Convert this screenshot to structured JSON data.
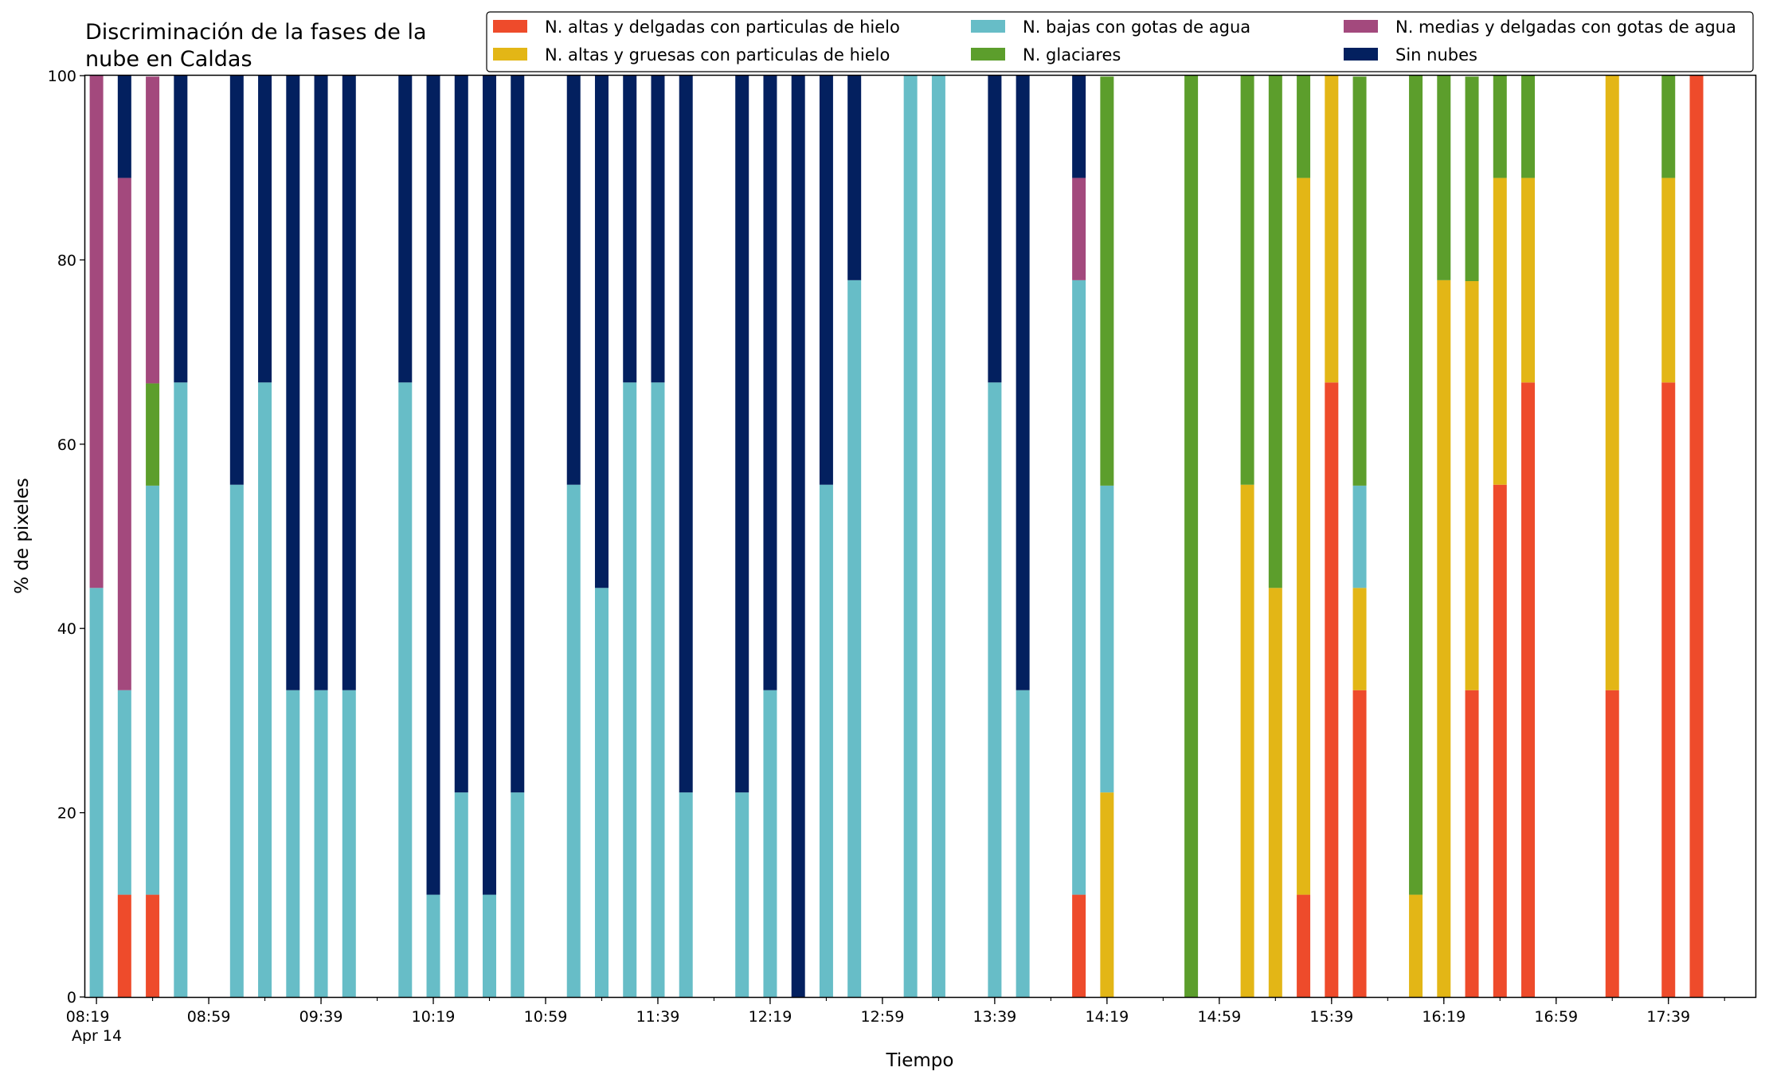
{
  "chart_data": {
    "type": "bar",
    "stacked": true,
    "title_lines": [
      "Discriminación de la fases de la",
      "nube en Caldas"
    ],
    "xlabel": "Tiempo",
    "ylabel": "% de pixeles",
    "ylim": [
      0,
      100
    ],
    "y_ticks": [
      0,
      20,
      40,
      60,
      80,
      100
    ],
    "x_ticks": [
      {
        "label": "08:19",
        "sublabel": "Apr 14",
        "time": "08:19"
      },
      {
        "label": "08:59",
        "time": "08:59"
      },
      {
        "label": "09:39",
        "time": "09:39"
      },
      {
        "label": "10:19",
        "time": "10:19"
      },
      {
        "label": "10:59",
        "time": "10:59"
      },
      {
        "label": "11:39",
        "time": "11:39"
      },
      {
        "label": "12:19",
        "time": "12:19"
      },
      {
        "label": "12:59",
        "time": "12:59"
      },
      {
        "label": "13:39",
        "time": "13:39"
      },
      {
        "label": "14:19",
        "time": "14:19"
      },
      {
        "label": "14:59",
        "time": "14:59"
      },
      {
        "label": "15:39",
        "time": "15:39"
      },
      {
        "label": "16:19",
        "time": "16:19"
      },
      {
        "label": "16:59",
        "time": "16:59"
      },
      {
        "label": "17:39",
        "time": "17:39"
      }
    ],
    "x_range": [
      "08:15",
      "18:10"
    ],
    "minor_tick_interval_minutes": 20,
    "grid": false,
    "legend_position": "top-right",
    "legend_columns": 3,
    "series": [
      {
        "name": "N. altas y delgadas con particulas de hielo",
        "color": "#ee4b2b"
      },
      {
        "name": "N. altas y gruesas con particulas de hielo",
        "color": "#e3b616"
      },
      {
        "name": "N. bajas con gotas de agua",
        "color": "#67bdc7"
      },
      {
        "name": "N. glaciares",
        "color": "#5c9e2c"
      },
      {
        "name": "N. medias y delgadas con gotas de agua",
        "color": "#a3497d"
      },
      {
        "name": "Sin nubes",
        "color": "#03205f"
      }
    ],
    "stack_order": [
      "N. altas y delgadas con particulas de hielo",
      "N. altas y gruesas con particulas de hielo",
      "N. bajas con gotas de agua",
      "N. glaciares",
      "N. medias y delgadas con gotas de agua",
      "Sin nubes"
    ],
    "bars": [
      {
        "time": "08:19",
        "values": [
          0,
          0,
          44.4,
          0,
          55.6,
          0
        ]
      },
      {
        "time": "08:29",
        "values": [
          11.1,
          0,
          22.2,
          0,
          55.6,
          11.1
        ]
      },
      {
        "time": "08:39",
        "values": [
          11.1,
          0,
          44.4,
          11.1,
          33.3,
          0
        ]
      },
      {
        "time": "08:49",
        "values": [
          0,
          0,
          66.7,
          0,
          0,
          33.3
        ]
      },
      {
        "time": "09:09",
        "values": [
          0,
          0,
          55.6,
          0,
          0,
          44.4
        ]
      },
      {
        "time": "09:19",
        "values": [
          0,
          0,
          66.7,
          0,
          0,
          33.3
        ]
      },
      {
        "time": "09:29",
        "values": [
          0,
          0,
          33.3,
          0,
          0,
          66.7
        ]
      },
      {
        "time": "09:39",
        "values": [
          0,
          0,
          33.3,
          0,
          0,
          66.7
        ]
      },
      {
        "time": "09:49",
        "values": [
          0,
          0,
          33.3,
          0,
          0,
          66.7
        ]
      },
      {
        "time": "10:09",
        "values": [
          0,
          0,
          66.7,
          0,
          0,
          33.3
        ]
      },
      {
        "time": "10:19",
        "values": [
          0,
          0,
          11.1,
          0,
          0,
          88.9
        ]
      },
      {
        "time": "10:29",
        "values": [
          0,
          0,
          22.2,
          0,
          0,
          77.8
        ]
      },
      {
        "time": "10:39",
        "values": [
          0,
          0,
          11.1,
          0,
          0,
          88.9
        ]
      },
      {
        "time": "10:49",
        "values": [
          0,
          0,
          22.2,
          0,
          0,
          77.8
        ]
      },
      {
        "time": "11:09",
        "values": [
          0,
          0,
          55.6,
          0,
          0,
          44.4
        ]
      },
      {
        "time": "11:19",
        "values": [
          0,
          0,
          44.4,
          0,
          0,
          55.6
        ]
      },
      {
        "time": "11:29",
        "values": [
          0,
          0,
          66.7,
          0,
          0,
          33.3
        ]
      },
      {
        "time": "11:39",
        "values": [
          0,
          0,
          66.7,
          0,
          0,
          33.3
        ]
      },
      {
        "time": "11:49",
        "values": [
          0,
          0,
          22.2,
          0,
          0,
          77.8
        ]
      },
      {
        "time": "12:09",
        "values": [
          0,
          0,
          22.2,
          0,
          0,
          77.8
        ]
      },
      {
        "time": "12:19",
        "values": [
          0,
          0,
          33.3,
          0,
          0,
          66.7
        ]
      },
      {
        "time": "12:29",
        "values": [
          0,
          0,
          0,
          0,
          0,
          100
        ]
      },
      {
        "time": "12:39",
        "values": [
          0,
          0,
          55.6,
          0,
          0,
          44.4
        ]
      },
      {
        "time": "12:49",
        "values": [
          0,
          0,
          77.8,
          0,
          0,
          22.2
        ]
      },
      {
        "time": "13:09",
        "values": [
          0,
          0,
          100,
          0,
          0,
          0
        ]
      },
      {
        "time": "13:19",
        "values": [
          0,
          0,
          100,
          0,
          0,
          0
        ]
      },
      {
        "time": "13:39",
        "values": [
          0,
          0,
          66.7,
          0,
          0,
          33.3
        ]
      },
      {
        "time": "13:49",
        "values": [
          0,
          0,
          33.3,
          0,
          0,
          66.7
        ]
      },
      {
        "time": "14:09",
        "values": [
          11.1,
          0,
          66.7,
          0,
          11.1,
          11.1
        ]
      },
      {
        "time": "14:19",
        "values": [
          0,
          22.2,
          33.3,
          44.4,
          0,
          0
        ]
      },
      {
        "time": "14:49",
        "values": [
          0,
          0,
          0,
          100,
          0,
          0
        ]
      },
      {
        "time": "15:09",
        "values": [
          0,
          55.6,
          0,
          44.4,
          0,
          0
        ]
      },
      {
        "time": "15:19",
        "values": [
          0,
          44.4,
          0,
          55.6,
          0,
          0
        ]
      },
      {
        "time": "15:29",
        "values": [
          11.1,
          77.8,
          0,
          11.1,
          0,
          0
        ]
      },
      {
        "time": "15:39",
        "values": [
          66.7,
          33.3,
          0,
          0,
          0,
          0
        ]
      },
      {
        "time": "15:49",
        "values": [
          33.3,
          11.1,
          11.1,
          44.4,
          0,
          0
        ]
      },
      {
        "time": "16:09",
        "values": [
          0,
          11.1,
          0,
          88.9,
          0,
          0
        ]
      },
      {
        "time": "16:19",
        "values": [
          0,
          77.8,
          0,
          22.2,
          0,
          0
        ]
      },
      {
        "time": "16:29",
        "values": [
          33.3,
          44.4,
          0,
          22.2,
          0,
          0
        ]
      },
      {
        "time": "16:39",
        "values": [
          55.6,
          33.3,
          0,
          11.1,
          0,
          0
        ]
      },
      {
        "time": "16:49",
        "values": [
          66.7,
          22.2,
          0,
          11.1,
          0,
          0
        ]
      },
      {
        "time": "17:19",
        "values": [
          33.3,
          66.7,
          0,
          0,
          0,
          0
        ]
      },
      {
        "time": "17:39",
        "values": [
          66.7,
          22.2,
          0,
          11.1,
          0,
          0
        ]
      },
      {
        "time": "17:49",
        "values": [
          100,
          0,
          0,
          0,
          0,
          0
        ]
      }
    ]
  }
}
